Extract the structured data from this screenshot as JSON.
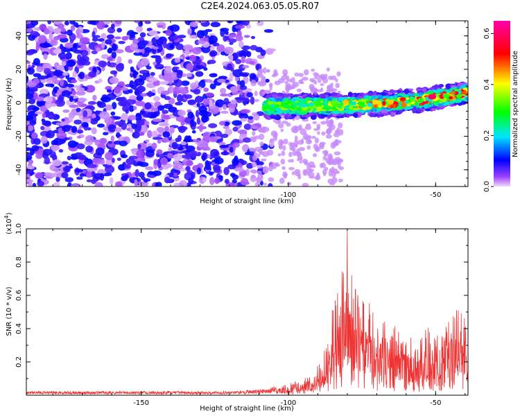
{
  "title": "C2E4.2024.063.05.05.R07",
  "colors": {
    "snr_line": "#ee3333",
    "axis": "#000000"
  },
  "chart_data": [
    {
      "type": "heatmap",
      "xlabel": "Height of straight line (km)",
      "ylabel": "Frequency (Hz)",
      "xlim": [
        -189,
        -39
      ],
      "ylim": [
        -50,
        49
      ],
      "xticks": [
        -150,
        -100,
        -50
      ],
      "yticks": [
        -40,
        -20,
        0,
        20,
        40
      ],
      "colorbar": {
        "label": "Normalized spectral amplitude",
        "range": [
          0,
          0.65
        ],
        "ticks": [
          "0.0",
          "0.2",
          "0.4",
          "0.6"
        ],
        "tick_values": [
          0,
          0.2,
          0.4,
          0.6
        ]
      },
      "description_regions": [
        {
          "x_range": [
            -189,
            -108
          ],
          "f_range": [
            -50,
            49
          ],
          "amplitude": 0.1,
          "pattern": "broadband noise"
        },
        {
          "x_range": [
            -108,
            -39
          ],
          "center_freq_start": -2,
          "center_freq_end": 6,
          "amplitude_max": 0.6,
          "pattern": "narrow band"
        }
      ]
    },
    {
      "type": "line",
      "xlabel": "Height of straight line (km)",
      "ylabel": "SNR (10 * v/v)",
      "scale_label": "(x10",
      "scale_exp": "4",
      "scale_close": ")",
      "xlim": [
        -189,
        -39
      ],
      "ylim": [
        0,
        1.0
      ],
      "xticks": [
        -150,
        -100,
        -50
      ],
      "yticks": [
        "0.2",
        "0.4",
        "0.6",
        "0.8",
        "1.0"
      ],
      "ytick_values": [
        0.2,
        0.4,
        0.6,
        0.8,
        1.0
      ],
      "envelope": {
        "x": [
          -189,
          -120,
          -108,
          -100,
          -92,
          -88,
          -85,
          -82,
          -80,
          -78,
          -75,
          -72,
          -68,
          -64,
          -60,
          -56,
          -52,
          -48,
          -44,
          -40,
          -39
        ],
        "y": [
          0.02,
          0.02,
          0.03,
          0.07,
          0.12,
          0.25,
          0.55,
          0.75,
          1.0,
          0.7,
          0.62,
          0.55,
          0.5,
          0.42,
          0.38,
          0.34,
          0.42,
          0.36,
          0.56,
          0.55,
          0.1
        ]
      }
    }
  ]
}
